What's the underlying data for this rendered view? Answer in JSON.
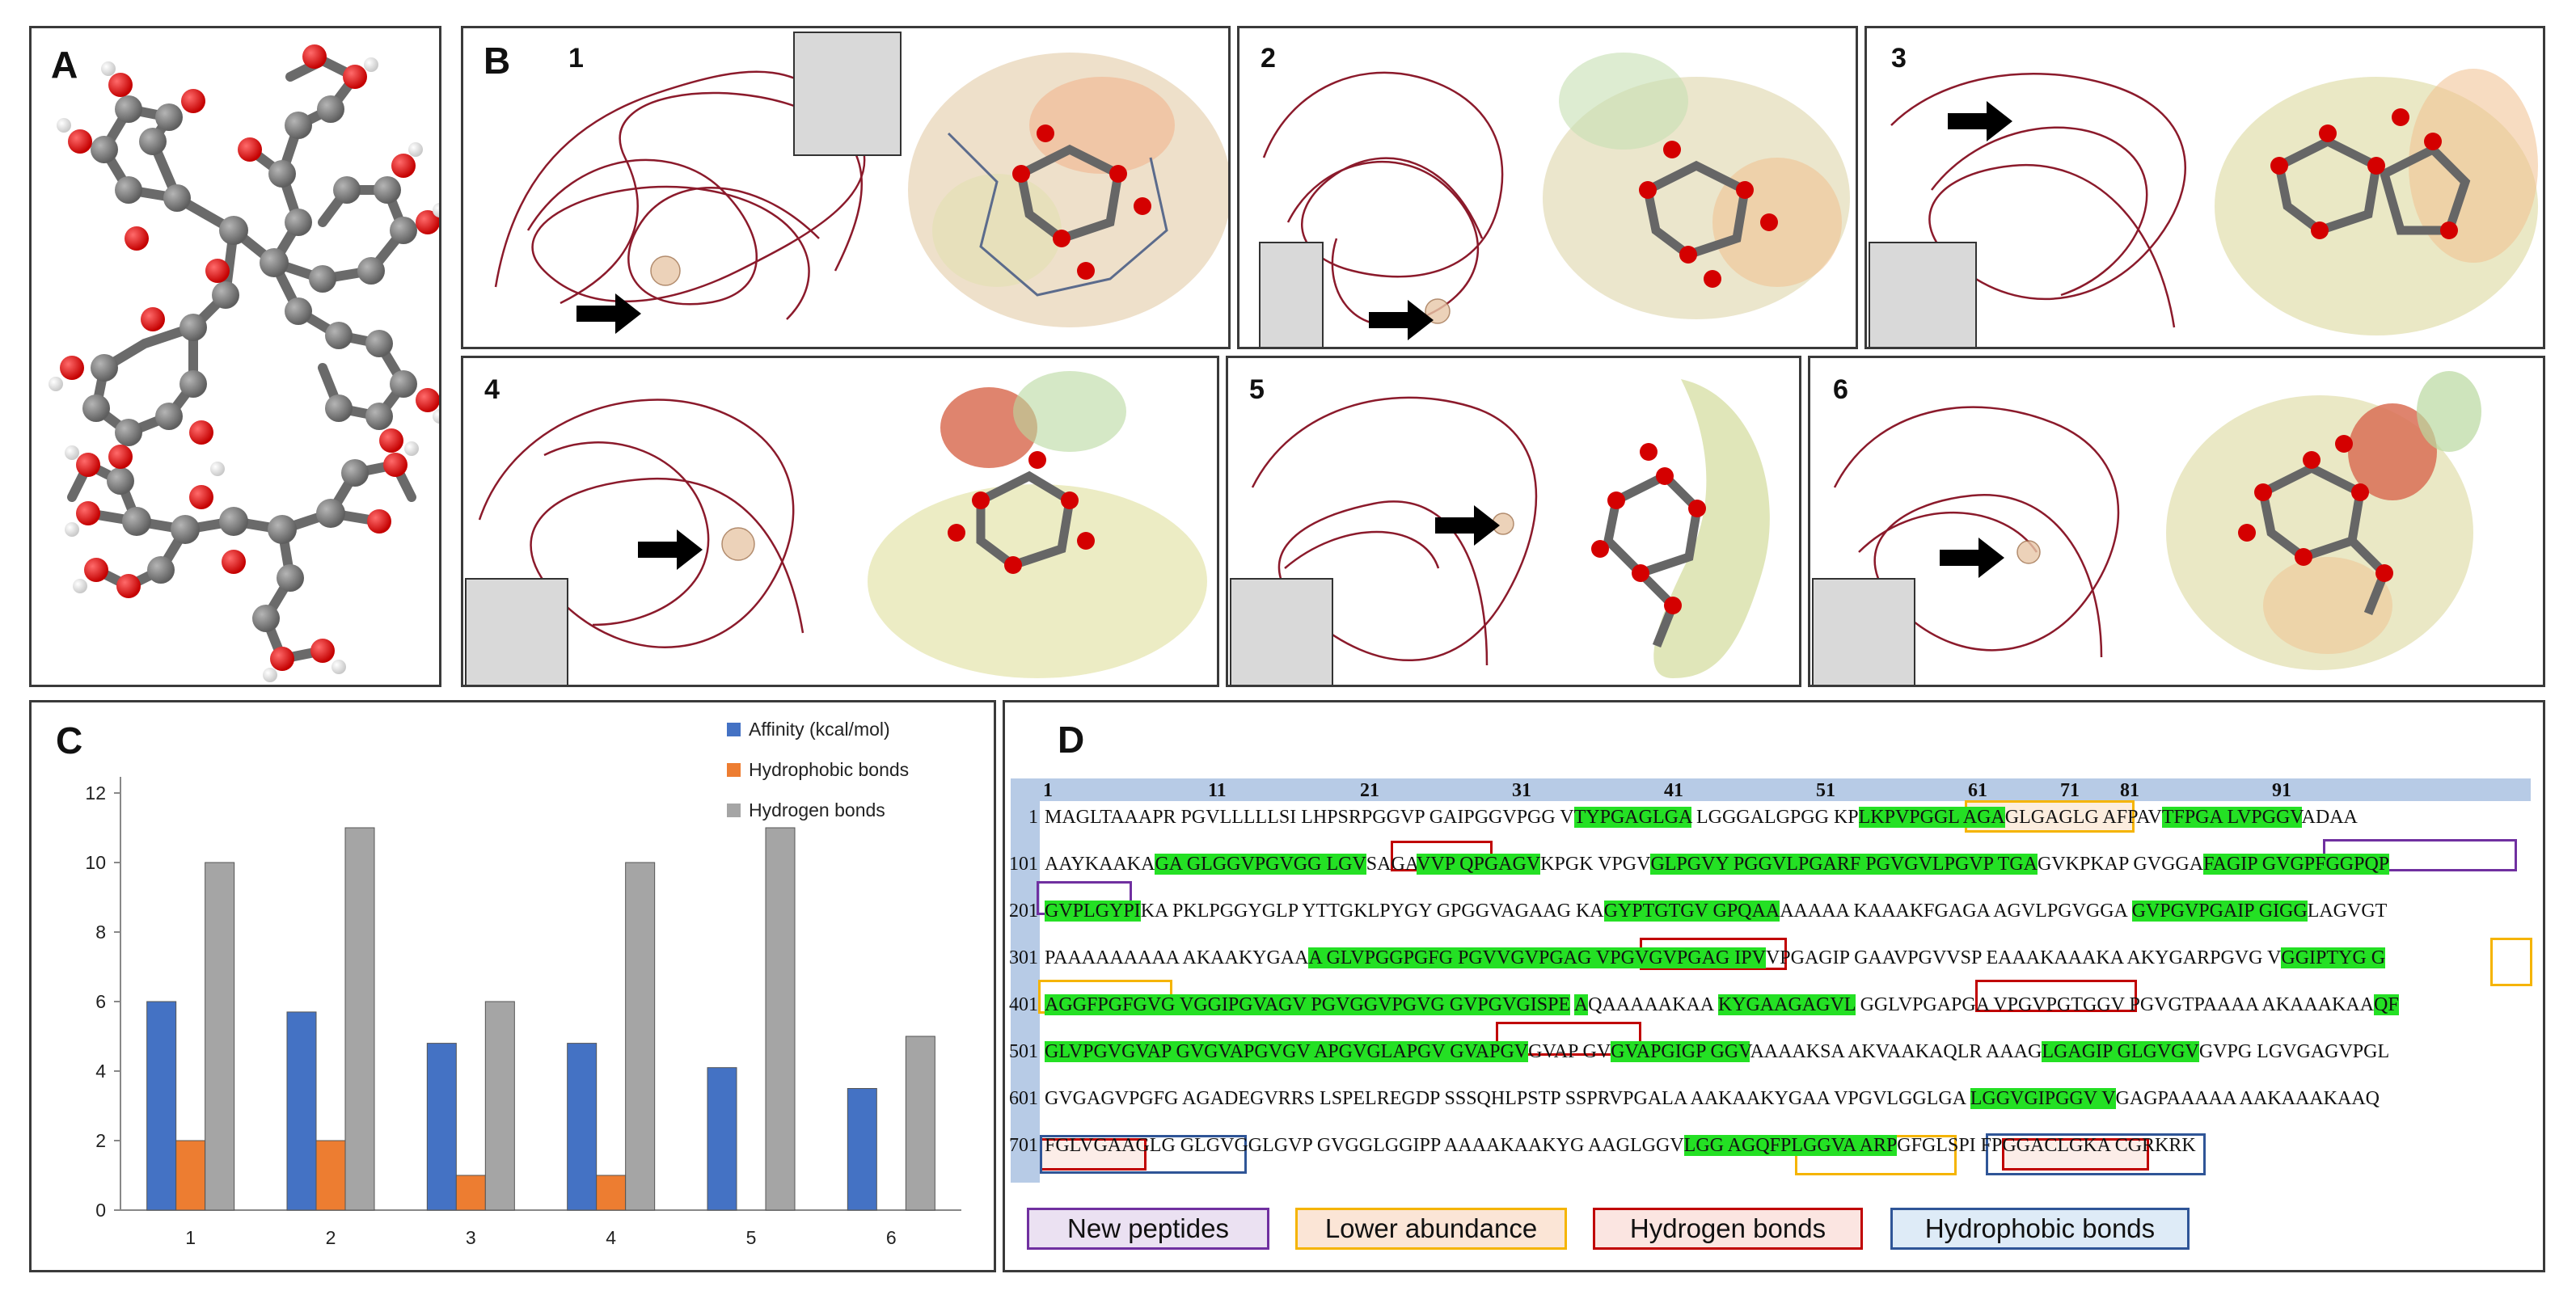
{
  "panels": {
    "a_label": "A",
    "b_label": "B",
    "c_label": "C",
    "d_label": "D",
    "b_sub": [
      "1",
      "2",
      "3",
      "4",
      "5",
      "6"
    ]
  },
  "colors": {
    "protein": "#8b1a2b",
    "carbon": "#7a7a7a",
    "oxygen": "#e00000",
    "hydrogen": "#f2f2f2",
    "affinity": "#4472c4",
    "hydrophobic": "#ed7d31",
    "hydrogen_bar": "#a5a5a5",
    "highlight_green": "#24e024",
    "new_peptides": "#7030a0",
    "lower_abundance": "#f5b400",
    "hydrogen_bonds": "#c00000",
    "hydrophobic_bonds": "#2f5597"
  },
  "chart_data": {
    "type": "bar",
    "categories": [
      "1",
      "2",
      "3",
      "4",
      "5",
      "6"
    ],
    "series": [
      {
        "name": "Affinity (kcal/mol)",
        "values": [
          6.0,
          5.7,
          4.8,
          4.8,
          4.1,
          3.5
        ]
      },
      {
        "name": "Hydrophobic bonds",
        "values": [
          2,
          2,
          1,
          1,
          0,
          0
        ]
      },
      {
        "name": "Hydrogen bonds",
        "values": [
          10,
          11,
          6,
          10,
          11,
          5
        ]
      }
    ],
    "ylim": [
      0,
      12
    ],
    "yticks": [
      "0",
      "2",
      "4",
      "6",
      "8",
      "10",
      "12"
    ],
    "legend_position": "top-right",
    "grid": false
  },
  "sequence": {
    "header_numbers": [
      "1",
      "11",
      "21",
      "31",
      "41",
      "51",
      "61",
      "71",
      "81",
      "91"
    ],
    "rows": [
      {
        "num": "1",
        "segments": [
          {
            "t": "MAGLTAAAPR PGVLLLLLSI LHPSRPGGVP GAIPGGVPGG V"
          },
          {
            "t": "TYPGAGLGA",
            "h": true
          },
          {
            "t": " LGGGALGPGG KP"
          },
          {
            "t": "LKPVPGGL AGA",
            "h": true
          },
          {
            "t": "GLGAGLG AFPAV"
          },
          {
            "t": "TFPGA LVPGGV",
            "h": true
          },
          {
            "t": "ADAA"
          }
        ]
      },
      {
        "num": "101",
        "segments": [
          {
            "t": "AAYKAAKA"
          },
          {
            "t": "GA GLGGVPGVGG LGV",
            "h": true
          },
          {
            "t": "SAGA"
          },
          {
            "t": "VVP QPGAGV",
            "h": true
          },
          {
            "t": "KPGK VPGV"
          },
          {
            "t": "GLPGVY PGGVLPGARF PGVGVLPGVP TGA",
            "h": true
          },
          {
            "t": "GVKPKAP GVGGA"
          },
          {
            "t": "FAGIP GVGPFGGPQP",
            "h": true
          }
        ]
      },
      {
        "num": "201",
        "segments": [
          {
            "t": "GVPLGYPI",
            "h": true
          },
          {
            "t": "KA PKLPGGYGLP YTTGKLPYGY GPGGVAGAAG KA"
          },
          {
            "t": "GYPTGTGV GPQAA",
            "h": true
          },
          {
            "t": "AAAAA KAAAKFGAGA AGVLPGVGGA "
          },
          {
            "t": "GVPGVPGAIP GIGG",
            "h": true
          },
          {
            "t": "LAGVGT"
          }
        ]
      },
      {
        "num": "301",
        "segments": [
          {
            "t": "PAAAAAAAAA AKAAKYGAA"
          },
          {
            "t": "A GLVPGGPGFG PGVVGVPGAG VPGVGVPGAG IPV",
            "h": true
          },
          {
            "t": "VPGAGIP GAAVPGVVSP EAAAKAAAKA AKYGARPGVG V"
          },
          {
            "t": "GGIPTYG G",
            "h": true
          }
        ]
      },
      {
        "num": "401",
        "segments": [
          {
            "t": "AGGFPGFGVG VGGIPGVAGV PGVGGVPGVG GVPGVGISPE",
            "h": true
          },
          {
            "t": " "
          },
          {
            "t": "A",
            "h": true
          },
          {
            "t": "QAAAAAKAA "
          },
          {
            "t": "KYGAAGAGVL",
            "h": true
          },
          {
            "t": " GGLVPGA"
          },
          {
            "t": "PGA VPGVPGTGGV PGVGTPAAAA AKAAAKAA"
          },
          {
            "t": "QF",
            "h": true
          }
        ]
      },
      {
        "num": "501",
        "segments": [
          {
            "t": "GLVPGVGVAP GVGVAPGVGV APGVGLAPGV GVAPGV",
            "h": true
          },
          {
            "t": "GVAP GV"
          },
          {
            "t": "GVAPGIGP GGV",
            "h": true
          },
          {
            "t": "AAAAKSA AKVAAKAQLR AAAG"
          },
          {
            "t": "LGAGIP GLGVGV",
            "h": true
          },
          {
            "t": "GVPG LGVGAGVPGL"
          }
        ]
      },
      {
        "num": "601",
        "segments": [
          {
            "t": "GVGAGVPGFG AGADEGVRRS LSPELREGDP SSSQHLPSTP SSPRVPGALA AAKAAKYGAA VPGVLGGLGA "
          },
          {
            "t": "LGGVGIPGGV V",
            "h": true
          },
          {
            "t": "GAGPAAAAA AAKAAAKAAQ"
          }
        ]
      },
      {
        "num": "701",
        "segments": [
          {
            "t": "FGLVGAAGLG GLGVGGLGVP GVGGLGGIPP AAAAKAAKYG AAGLGGV"
          },
          {
            "t": "LGG AGQFPLGGVA ARP",
            "h": true
          },
          {
            "t": "GFGLSPI FPGGACLGKA CGRKRK"
          }
        ]
      }
    ],
    "legend": [
      "New peptides",
      "Lower abundance",
      "Hydrogen bonds",
      "Hydrophobic bonds"
    ]
  }
}
